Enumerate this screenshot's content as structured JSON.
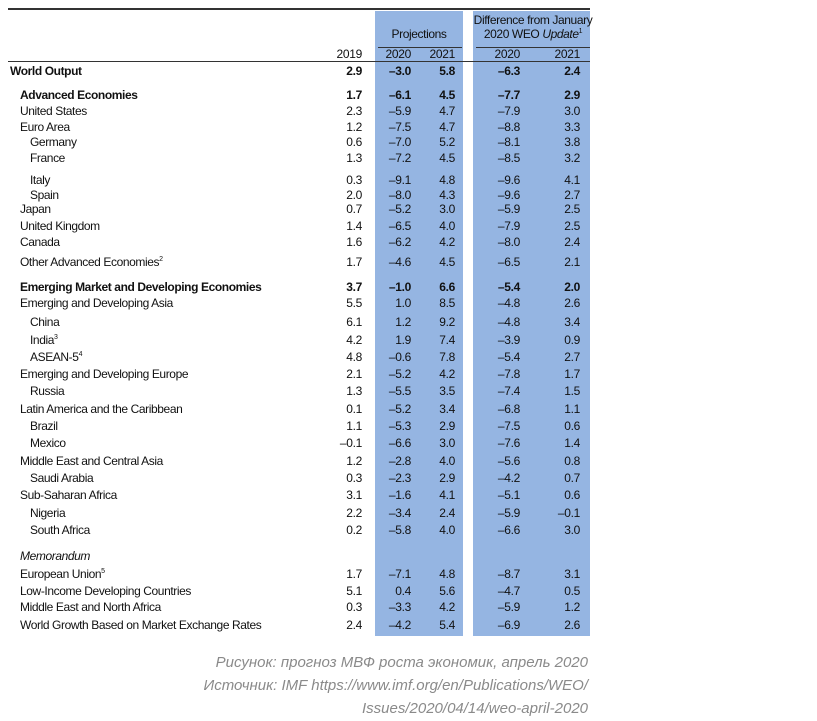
{
  "header": {
    "projections": "Projections",
    "difference_line1": "Difference from January",
    "difference_line2_prefix": "2020 WEO ",
    "difference_line2_italic": "Update",
    "difference_sup": "1",
    "years": [
      "2019",
      "2020",
      "2021",
      "2020",
      "2021"
    ]
  },
  "rows": [
    {
      "label": "World Output",
      "sup": "",
      "level": 0,
      "bold": true,
      "values": [
        "2.9",
        "–3.0",
        "5.8",
        "–6.3",
        "2.4"
      ]
    },
    {
      "label": "Advanced Economies",
      "sup": "",
      "level": 1,
      "bold": true,
      "values": [
        "1.7",
        "–6.1",
        "4.5",
        "–7.7",
        "2.9"
      ]
    },
    {
      "label": "United States",
      "sup": "",
      "level": 1,
      "bold": false,
      "values": [
        "2.3",
        "–5.9",
        "4.7",
        "–7.9",
        "3.0"
      ]
    },
    {
      "label": "Euro Area",
      "sup": "",
      "level": 1,
      "bold": false,
      "values": [
        "1.2",
        "–7.5",
        "4.7",
        "–8.8",
        "3.3"
      ]
    },
    {
      "label": "Germany",
      "sup": "",
      "level": 2,
      "bold": false,
      "values": [
        "0.6",
        "–7.0",
        "5.2",
        "–8.1",
        "3.8"
      ]
    },
    {
      "label": "France",
      "sup": "",
      "level": 2,
      "bold": false,
      "values": [
        "1.3",
        "–7.2",
        "4.5",
        "–8.5",
        "3.2"
      ]
    },
    {
      "label": "Italy",
      "sup": "",
      "level": 2,
      "bold": false,
      "values": [
        "0.3",
        "–9.1",
        "4.8",
        "–9.6",
        "4.1"
      ]
    },
    {
      "label": "Spain",
      "sup": "",
      "level": 2,
      "bold": false,
      "values": [
        "2.0",
        "–8.0",
        "4.3",
        "–9.6",
        "2.7"
      ]
    },
    {
      "label": "Japan",
      "sup": "",
      "level": 1,
      "bold": false,
      "values": [
        "0.7",
        "–5.2",
        "3.0",
        "–5.9",
        "2.5"
      ]
    },
    {
      "label": "United Kingdom",
      "sup": "",
      "level": 1,
      "bold": false,
      "values": [
        "1.4",
        "–6.5",
        "4.0",
        "–7.9",
        "2.5"
      ]
    },
    {
      "label": "Canada",
      "sup": "",
      "level": 1,
      "bold": false,
      "values": [
        "1.6",
        "–6.2",
        "4.2",
        "–8.0",
        "2.4"
      ]
    },
    {
      "label": "Other Advanced Economies",
      "sup": "2",
      "level": 1,
      "bold": false,
      "values": [
        "1.7",
        "–4.6",
        "4.5",
        "–6.5",
        "2.1"
      ]
    },
    {
      "label": "Emerging Market and Developing Economies",
      "sup": "",
      "level": 1,
      "bold": true,
      "values": [
        "3.7",
        "–1.0",
        "6.6",
        "–5.4",
        "2.0"
      ]
    },
    {
      "label": "Emerging and Developing Asia",
      "sup": "",
      "level": 1,
      "bold": false,
      "values": [
        "5.5",
        "1.0",
        "8.5",
        "–4.8",
        "2.6"
      ]
    },
    {
      "label": "China",
      "sup": "",
      "level": 2,
      "bold": false,
      "values": [
        "6.1",
        "1.2",
        "9.2",
        "–4.8",
        "3.4"
      ]
    },
    {
      "label": "India",
      "sup": "3",
      "level": 2,
      "bold": false,
      "values": [
        "4.2",
        "1.9",
        "7.4",
        "–3.9",
        "0.9"
      ]
    },
    {
      "label": "ASEAN-5",
      "sup": "4",
      "level": 2,
      "bold": false,
      "values": [
        "4.8",
        "–0.6",
        "7.8",
        "–5.4",
        "2.7"
      ]
    },
    {
      "label": "Emerging and Developing Europe",
      "sup": "",
      "level": 1,
      "bold": false,
      "values": [
        "2.1",
        "–5.2",
        "4.2",
        "–7.8",
        "1.7"
      ]
    },
    {
      "label": "Russia",
      "sup": "",
      "level": 2,
      "bold": false,
      "values": [
        "1.3",
        "–5.5",
        "3.5",
        "–7.4",
        "1.5"
      ]
    },
    {
      "label": "Latin America and the Caribbean",
      "sup": "",
      "level": 1,
      "bold": false,
      "values": [
        "0.1",
        "–5.2",
        "3.4",
        "–6.8",
        "1.1"
      ]
    },
    {
      "label": "Brazil",
      "sup": "",
      "level": 2,
      "bold": false,
      "values": [
        "1.1",
        "–5.3",
        "2.9",
        "–7.5",
        "0.6"
      ]
    },
    {
      "label": "Mexico",
      "sup": "",
      "level": 2,
      "bold": false,
      "values": [
        "–0.1",
        "–6.6",
        "3.0",
        "–7.6",
        "1.4"
      ]
    },
    {
      "label": "Middle East and Central Asia",
      "sup": "",
      "level": 1,
      "bold": false,
      "values": [
        "1.2",
        "–2.8",
        "4.0",
        "–5.6",
        "0.8"
      ]
    },
    {
      "label": "Saudi Arabia",
      "sup": "",
      "level": 2,
      "bold": false,
      "values": [
        "0.3",
        "–2.3",
        "2.9",
        "–4.2",
        "0.7"
      ]
    },
    {
      "label": "Sub-Saharan Africa",
      "sup": "",
      "level": 1,
      "bold": false,
      "values": [
        "3.1",
        "–1.6",
        "4.1",
        "–5.1",
        "0.6"
      ]
    },
    {
      "label": "Nigeria",
      "sup": "",
      "level": 2,
      "bold": false,
      "values": [
        "2.2",
        "–3.4",
        "2.4",
        "–5.9",
        "–0.1"
      ]
    },
    {
      "label": "South Africa",
      "sup": "",
      "level": 2,
      "bold": false,
      "values": [
        "0.2",
        "–5.8",
        "4.0",
        "–6.6",
        "3.0"
      ]
    },
    {
      "label": "Memorandum",
      "sup": "",
      "level": 1,
      "bold": false,
      "italic": true,
      "values": []
    },
    {
      "label": "European Union",
      "sup": "5",
      "level": 1,
      "bold": false,
      "values": [
        "1.7",
        "–7.1",
        "4.8",
        "–8.7",
        "3.1"
      ]
    },
    {
      "label": "Low-Income Developing Countries",
      "sup": "",
      "level": 1,
      "bold": false,
      "values": [
        "5.1",
        "0.4",
        "5.6",
        "–4.7",
        "0.5"
      ]
    },
    {
      "label": "Middle East and North Africa",
      "sup": "",
      "level": 1,
      "bold": false,
      "values": [
        "0.3",
        "–3.3",
        "4.2",
        "–5.9",
        "1.2"
      ]
    },
    {
      "label": "World Growth Based on Market Exchange Rates",
      "sup": "",
      "level": 1,
      "bold": false,
      "values": [
        "2.4",
        "–4.2",
        "5.4",
        "–6.9",
        "2.6"
      ]
    }
  ],
  "caption": [
    "Рисунок: прогноз МВФ роста экономик, апрель 2020",
    "Источник: IMF https://www.imf.org/en/Publications/WEO/",
    "Issues/2020/04/14/weo-april-2020"
  ],
  "colors": {
    "highlight": "#95b5e2"
  }
}
